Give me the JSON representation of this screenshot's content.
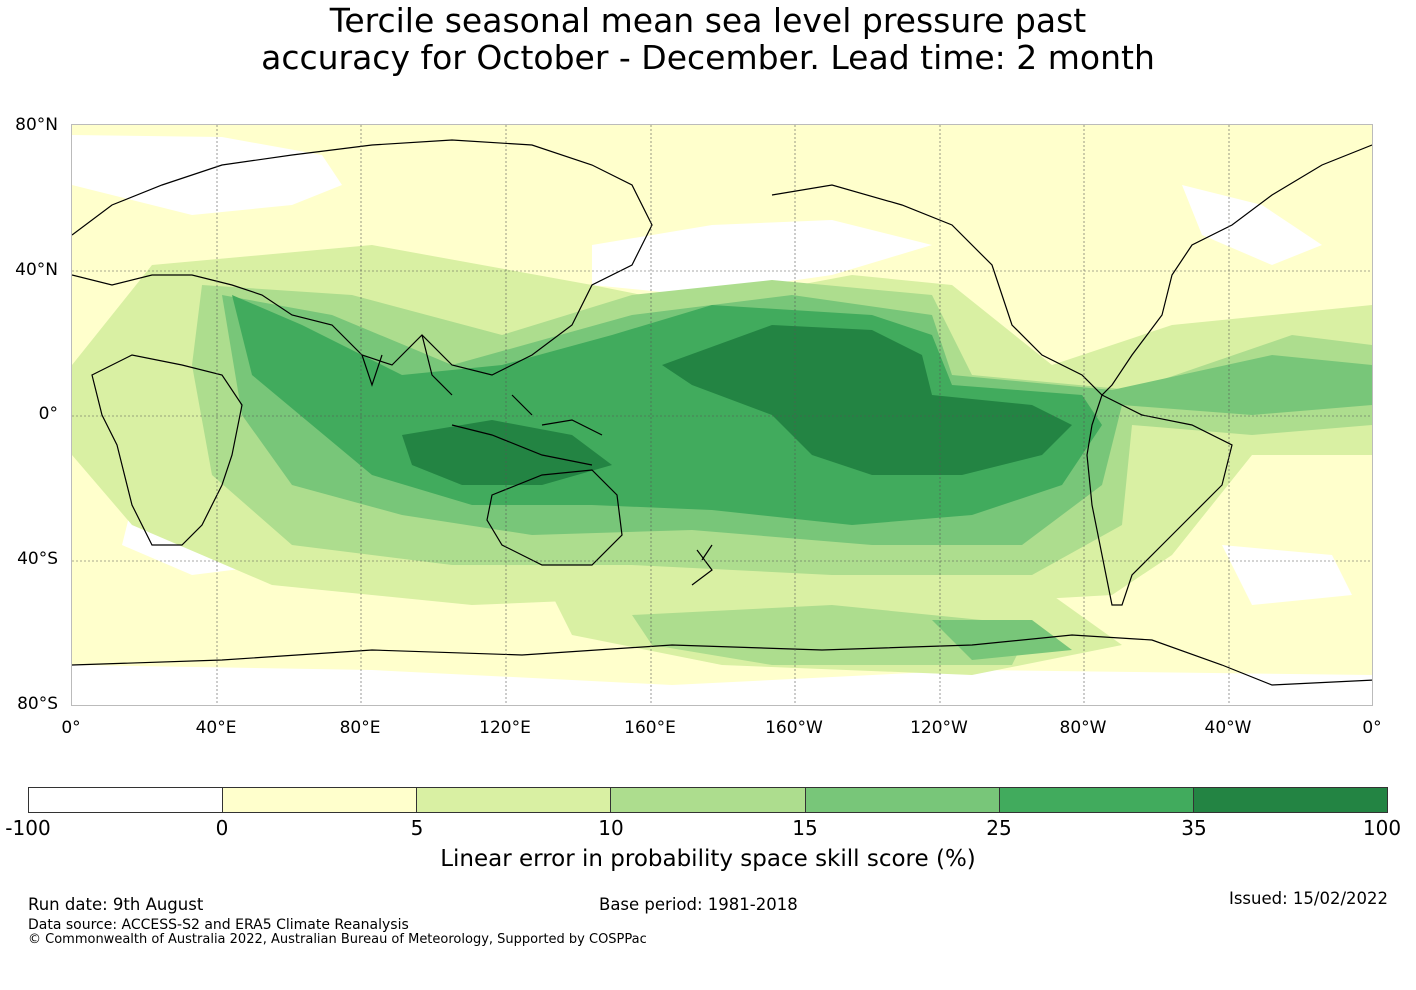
{
  "title": {
    "line1": "Tercile seasonal mean sea level pressure past",
    "line2": "accuracy for October - December. Lead time: 2 month"
  },
  "map": {
    "lat_labels": [
      "80°N",
      "40°N",
      "0°",
      "40°S",
      "80°S"
    ],
    "lon_labels": [
      "0°",
      "40°E",
      "80°E",
      "120°E",
      "160°E",
      "160°W",
      "120°W",
      "80°W",
      "40°W",
      "0°"
    ],
    "ocean_fill": "#ffffcc"
  },
  "colorbar": {
    "colors": [
      "#ffffff",
      "#ffffcc",
      "#d9f0a3",
      "#addd8e",
      "#78c679",
      "#41ab5d",
      "#238443"
    ],
    "ticks": [
      "-100",
      "0",
      "5",
      "10",
      "15",
      "25",
      "35",
      "100"
    ],
    "label": "Linear error in probability space skill score (%)"
  },
  "footer": {
    "run_date": "Run date: 9th August",
    "base_period": "Base period: 1981-2018",
    "issued": "Issued: 15/02/2022",
    "data_source": "Data source: ACCESS-S2 and ERA5 Climate Reanalysis",
    "copyright": "© Commonwealth of Australia 2022, Australian Bureau of Meteorology, Supported by COSPPac"
  }
}
